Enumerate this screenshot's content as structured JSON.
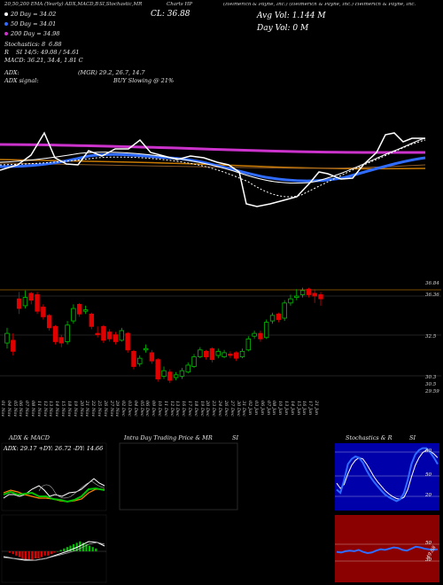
{
  "header": {
    "title_row": [
      "20,50,200 EMA (Yearly) ADX,MACD,B",
      "SI,Stochastic,MR",
      "Charts HP",
      "(Helmerich & Payne, Inc.) (Helmerich & Payne, Inc.) Helmerich & Payne, Inc."
    ],
    "ema": [
      {
        "label": "20 Day = 34.02",
        "color": "#ffffff"
      },
      {
        "label": "50 Day = 34.01",
        "color": "#2f6cff"
      },
      {
        "label": "200 Day = 34.98",
        "color": "#cc33cc"
      }
    ],
    "cl": "CL: 36.88",
    "avg_vol": "Avg Vol: 1.144 M",
    "day_vol": "Day Vol: 0 M",
    "stoch_lines": [
      "Stochastics: 8",
      "6.88",
      "R",
      "SI 14/5: 49.08 / 54.61",
      "MACD: 36.21, 34.4, 1.81 C"
    ],
    "adx_label": "ADX:",
    "adx_values": "(MGR) 29.2, 26.7, 14.7",
    "adx_signal_label": "ADX signal:",
    "adx_signal_value": "BUY Slowing @ 21%"
  },
  "price_axis": [
    "36.84",
    "36.36",
    "32.5",
    "30.3",
    "30.5",
    "29.59"
  ],
  "date_labels": [
    "01 Nov",
    "04 Nov",
    "05 Nov",
    "06 Nov",
    "07 Nov",
    "08 Nov",
    "11 Nov",
    "12 Nov",
    "13 Nov",
    "14 Nov",
    "15 Nov",
    "18 Nov",
    "19 Nov",
    "20 Nov",
    "21 Nov",
    "22 Nov",
    "25 Nov",
    "26 Nov",
    "27 Nov",
    "29 Nov",
    "02 Dec",
    "03 Dec",
    "04 Dec",
    "05 Dec",
    "06 Dec",
    "09 Dec",
    "10 Dec",
    "11 Dec",
    "12 Dec",
    "13 Dec",
    "16 Dec",
    "17 Dec",
    "18 Dec",
    "19 Dec",
    "20 Dec",
    "23 Dec",
    "24 Dec",
    "26 Dec",
    "27 Dec",
    "30 Dec",
    "31 Dec",
    "02 Jan",
    "03 Jan",
    "06 Jan",
    "07 Jan",
    "08 Jan",
    "10 Jan",
    "13 Jan",
    "14 Jan",
    "15 Jan",
    "16 Jan",
    "17 Jan",
    "21 Jan"
  ],
  "panels": {
    "adx_macd_title": "ADX & MACD",
    "adx_readout": "ADX: 29.17 +DY: 26.72 -DY: 14.66",
    "intraday_title": "Intra Day Trading Price & MR",
    "si_title": "SI",
    "stoch_title": "Stochastics & R",
    "si2_title": "SI",
    "stoch_ticks": [
      "80",
      "50",
      "20"
    ],
    "si_ticks": [
      "50",
      "30"
    ],
    "si_value": "49.08"
  },
  "colors": {
    "up": "#00c000",
    "down": "#e00000",
    "ema20": "#ffffff",
    "ema50": "#2f6cff",
    "ema200": "#cc33cc",
    "si_bg": "#8b0000",
    "stoch_fast": "#2f6cff"
  },
  "chart_data": [
    {
      "type": "candlestick",
      "title": "Charts HP",
      "x": [
        "01 Nov",
        "04 Nov",
        "05 Nov",
        "06 Nov",
        "07 Nov",
        "08 Nov",
        "11 Nov",
        "12 Nov",
        "13 Nov",
        "14 Nov",
        "15 Nov",
        "18 Nov",
        "19 Nov",
        "20 Nov",
        "21 Nov",
        "22 Nov",
        "25 Nov",
        "26 Nov",
        "27 Nov",
        "29 Nov",
        "02 Dec",
        "03 Dec",
        "04 Dec",
        "05 Dec",
        "06 Dec",
        "09 Dec",
        "10 Dec",
        "11 Dec",
        "12 Dec",
        "13 Dec",
        "16 Dec",
        "17 Dec",
        "18 Dec",
        "19 Dec",
        "20 Dec",
        "23 Dec",
        "24 Dec",
        "26 Dec",
        "27 Dec",
        "30 Dec",
        "31 Dec",
        "02 Jan",
        "03 Jan",
        "06 Jan",
        "07 Jan",
        "08 Jan",
        "10 Jan",
        "13 Jan",
        "14 Jan",
        "15 Jan",
        "16 Jan",
        "17 Jan",
        "21 Jan"
      ],
      "ylim": [
        29.5,
        37.2
      ],
      "open": [
        32.9,
        33.1,
        36.1,
        35.6,
        36.5,
        36.4,
        35.5,
        34.9,
        34.1,
        33.3,
        33.0,
        34.5,
        35.7,
        35.2,
        35.0,
        33.6,
        34.1,
        33.7,
        33.5,
        33.1,
        33.6,
        32.3,
        31.4,
        32.4,
        32.2,
        31.7,
        30.5,
        30.8,
        30.4,
        30.5,
        30.8,
        31.2,
        31.9,
        32.3,
        32.5,
        32.0,
        31.9,
        32.1,
        32.2,
        31.9,
        32.4,
        33.4,
        33.6,
        33.3,
        34.5,
        35.0,
        34.7,
        35.8,
        36.2,
        36.4,
        36.8,
        36.5,
        36.4
      ],
      "close": [
        33.6,
        32.3,
        35.4,
        36.2,
        36.0,
        35.2,
        34.8,
        34.0,
        33.0,
        32.9,
        34.2,
        35.4,
        35.0,
        35.3,
        34.1,
        33.5,
        33.1,
        33.2,
        33.0,
        33.8,
        32.4,
        31.2,
        31.8,
        32.5,
        31.6,
        30.3,
        30.9,
        30.2,
        30.6,
        30.9,
        31.3,
        31.9,
        32.4,
        31.9,
        31.7,
        32.3,
        32.2,
        32.0,
        31.8,
        32.3,
        33.2,
        33.6,
        33.2,
        34.4,
        34.9,
        34.6,
        35.8,
        36.1,
        36.3,
        36.7,
        36.4,
        36.3,
        36.1
      ],
      "high": [
        34.0,
        33.6,
        36.6,
        36.7,
        36.6,
        36.6,
        35.7,
        35.0,
        34.2,
        33.5,
        34.5,
        35.7,
        35.8,
        35.6,
        35.1,
        34.1,
        34.2,
        33.9,
        33.7,
        34.0,
        33.7,
        32.4,
        32.0,
        32.8,
        32.4,
        31.8,
        31.2,
        31.0,
        30.8,
        31.1,
        31.5,
        32.1,
        32.6,
        32.4,
        32.6,
        32.5,
        32.4,
        32.3,
        32.3,
        32.5,
        33.4,
        33.8,
        33.8,
        34.6,
        35.1,
        35.1,
        36.0,
        36.4,
        36.8,
        36.9,
        36.9,
        36.8,
        36.6
      ],
      "low": [
        32.5,
        32.0,
        35.0,
        35.4,
        35.7,
        35.0,
        34.6,
        33.8,
        32.8,
        32.6,
        32.8,
        34.3,
        34.8,
        35.0,
        33.9,
        33.3,
        32.9,
        33.0,
        32.8,
        33.0,
        32.2,
        31.0,
        31.2,
        32.2,
        31.4,
        30.1,
        30.3,
        30.0,
        30.2,
        30.3,
        30.7,
        31.1,
        31.8,
        31.7,
        31.5,
        31.8,
        31.8,
        31.8,
        31.6,
        31.8,
        32.3,
        33.2,
        33.0,
        33.2,
        34.3,
        34.4,
        34.5,
        35.6,
        36.0,
        36.2,
        36.2,
        35.8,
        35.6
      ]
    },
    {
      "type": "line",
      "title": "Stochastics & R",
      "ylim": [
        0,
        100
      ],
      "series": [
        {
          "values": [
            30,
            25,
            45,
            70,
            78,
            82,
            80,
            72,
            60,
            50,
            42,
            35,
            28,
            22,
            18,
            15,
            12,
            15,
            25,
            45,
            70,
            85,
            92,
            95,
            95,
            88,
            80,
            70
          ]
        },
        {
          "values": [
            40,
            32,
            38,
            55,
            68,
            76,
            80,
            78,
            70,
            60,
            50,
            42,
            35,
            28,
            23,
            19,
            16,
            15,
            18,
            30,
            50,
            68,
            80,
            88,
            92,
            90,
            86,
            80
          ]
        }
      ]
    },
    {
      "type": "line",
      "title": "SI",
      "ylim": [
        0,
        100
      ],
      "series": [
        {
          "values": [
            45,
            44,
            46,
            47,
            46,
            48,
            45,
            43,
            44,
            47,
            49,
            48,
            50,
            52,
            51,
            48,
            47,
            50,
            53,
            52,
            50,
            49,
            48,
            49
          ]
        }
      ]
    }
  ]
}
